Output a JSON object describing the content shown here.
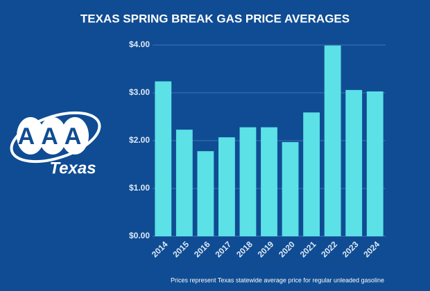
{
  "logo": {
    "mark": "AAA",
    "name": "Texas"
  },
  "chart_data": {
    "type": "bar",
    "title": "TEXAS SPRING BREAK GAS PRICE AVERAGES",
    "categories": [
      "2014",
      "2015",
      "2016",
      "2017",
      "2018",
      "2019",
      "2020",
      "2021",
      "2022",
      "2023",
      "2024"
    ],
    "values": [
      3.24,
      2.23,
      1.78,
      2.07,
      2.28,
      2.28,
      1.97,
      2.59,
      3.99,
      3.06,
      3.03
    ],
    "color": "#5ce1e6",
    "ylim": [
      0,
      4
    ],
    "yticks": [
      {
        "value": 0,
        "label": "$0.00"
      },
      {
        "value": 1,
        "label": "$1.00"
      },
      {
        "value": 2,
        "label": "$2.00"
      },
      {
        "value": 3,
        "label": "$3.00"
      },
      {
        "value": 4,
        "label": "$4.00"
      }
    ],
    "grid": true,
    "note": "Prices represent Texas statewide average price for regular unleaded gasoline"
  }
}
